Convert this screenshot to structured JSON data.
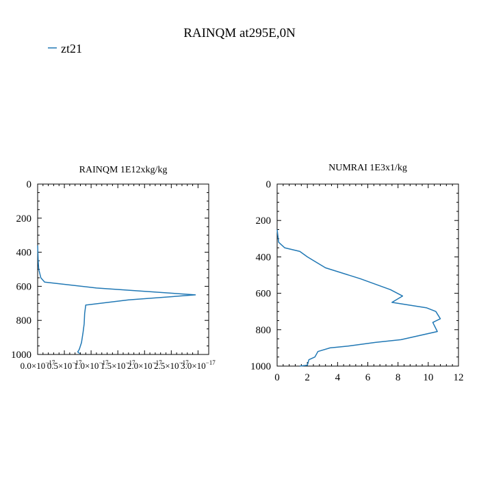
{
  "figure": {
    "title": "RAINQM at295E,0N",
    "legend": {
      "label": "zt21",
      "color": "#1f77b4",
      "placement": "top-left"
    }
  },
  "chart_data": [
    {
      "type": "line",
      "title": "RAINQM  1E12xkg/kg",
      "xlabel": "",
      "ylabel": "",
      "xlim": [
        0,
        3.2e-17
      ],
      "ylim": [
        1000,
        0
      ],
      "y_inverted": true,
      "grid": false,
      "xticks": [
        0,
        5e-18,
        1e-17,
        1.5e-17,
        2e-17,
        2.5e-17,
        3e-17
      ],
      "xtick_labels": [
        "0.0×10",
        "0.5×10",
        "1.0×10",
        "1.5×10",
        "2.0×10",
        "2.5×10",
        "3.0×10"
      ],
      "xtick_exponents": [
        "−17",
        "−17",
        "−17",
        "−17",
        "−17",
        "−17",
        "−17"
      ],
      "yticks": [
        0,
        200,
        400,
        600,
        800,
        1000
      ],
      "ytick_labels": [
        "0",
        "200",
        "400",
        "600",
        "800",
        "1000"
      ],
      "series": [
        {
          "name": "zt21",
          "color": "#1f77b4",
          "points": [
            [
              0,
              360
            ],
            [
              5e-20,
              400
            ],
            [
              1e-19,
              450
            ],
            [
              2e-19,
              500
            ],
            [
              6e-19,
              550
            ],
            [
              1.3e-18,
              575
            ],
            [
              1.1e-17,
              610
            ],
            [
              2.95e-17,
              650
            ],
            [
              1.7e-17,
              680
            ],
            [
              9e-18,
              710
            ],
            [
              8.8e-18,
              760
            ],
            [
              8.7e-18,
              820
            ],
            [
              8.5e-18,
              870
            ],
            [
              8.2e-18,
              930
            ],
            [
              7.8e-18,
              970
            ],
            [
              7.5e-18,
              985
            ],
            [
              7.9e-18,
              995
            ]
          ]
        }
      ]
    },
    {
      "type": "line",
      "title": "NUMRAI  1E3x1/kg",
      "xlabel": "",
      "ylabel": "",
      "xlim": [
        0,
        12
      ],
      "ylim": [
        1000,
        0
      ],
      "y_inverted": true,
      "grid": false,
      "xticks": [
        0,
        2,
        4,
        6,
        8,
        10,
        12
      ],
      "xtick_labels": [
        "0",
        "2",
        "4",
        "6",
        "8",
        "10",
        "12"
      ],
      "yticks": [
        0,
        200,
        400,
        600,
        800,
        1000
      ],
      "ytick_labels": [
        "0",
        "200",
        "400",
        "600",
        "800",
        "1000"
      ],
      "series": [
        {
          "name": "zt21",
          "color": "#1f77b4",
          "points": [
            [
              0,
              250
            ],
            [
              0.1,
              320
            ],
            [
              0.5,
              350
            ],
            [
              1.5,
              370
            ],
            [
              2,
              400
            ],
            [
              3.2,
              460
            ],
            [
              5.5,
              520
            ],
            [
              7.5,
              580
            ],
            [
              8.3,
              615
            ],
            [
              7.6,
              650
            ],
            [
              9.9,
              680
            ],
            [
              10.5,
              700
            ],
            [
              10.8,
              740
            ],
            [
              10.3,
              760
            ],
            [
              10.6,
              810
            ],
            [
              8.2,
              855
            ],
            [
              6.5,
              870
            ],
            [
              4.7,
              890
            ],
            [
              3.5,
              900
            ],
            [
              2.7,
              920
            ],
            [
              2.5,
              950
            ],
            [
              2.1,
              965
            ],
            [
              2,
              995
            ],
            [
              1.5,
              1000
            ]
          ]
        }
      ]
    }
  ]
}
